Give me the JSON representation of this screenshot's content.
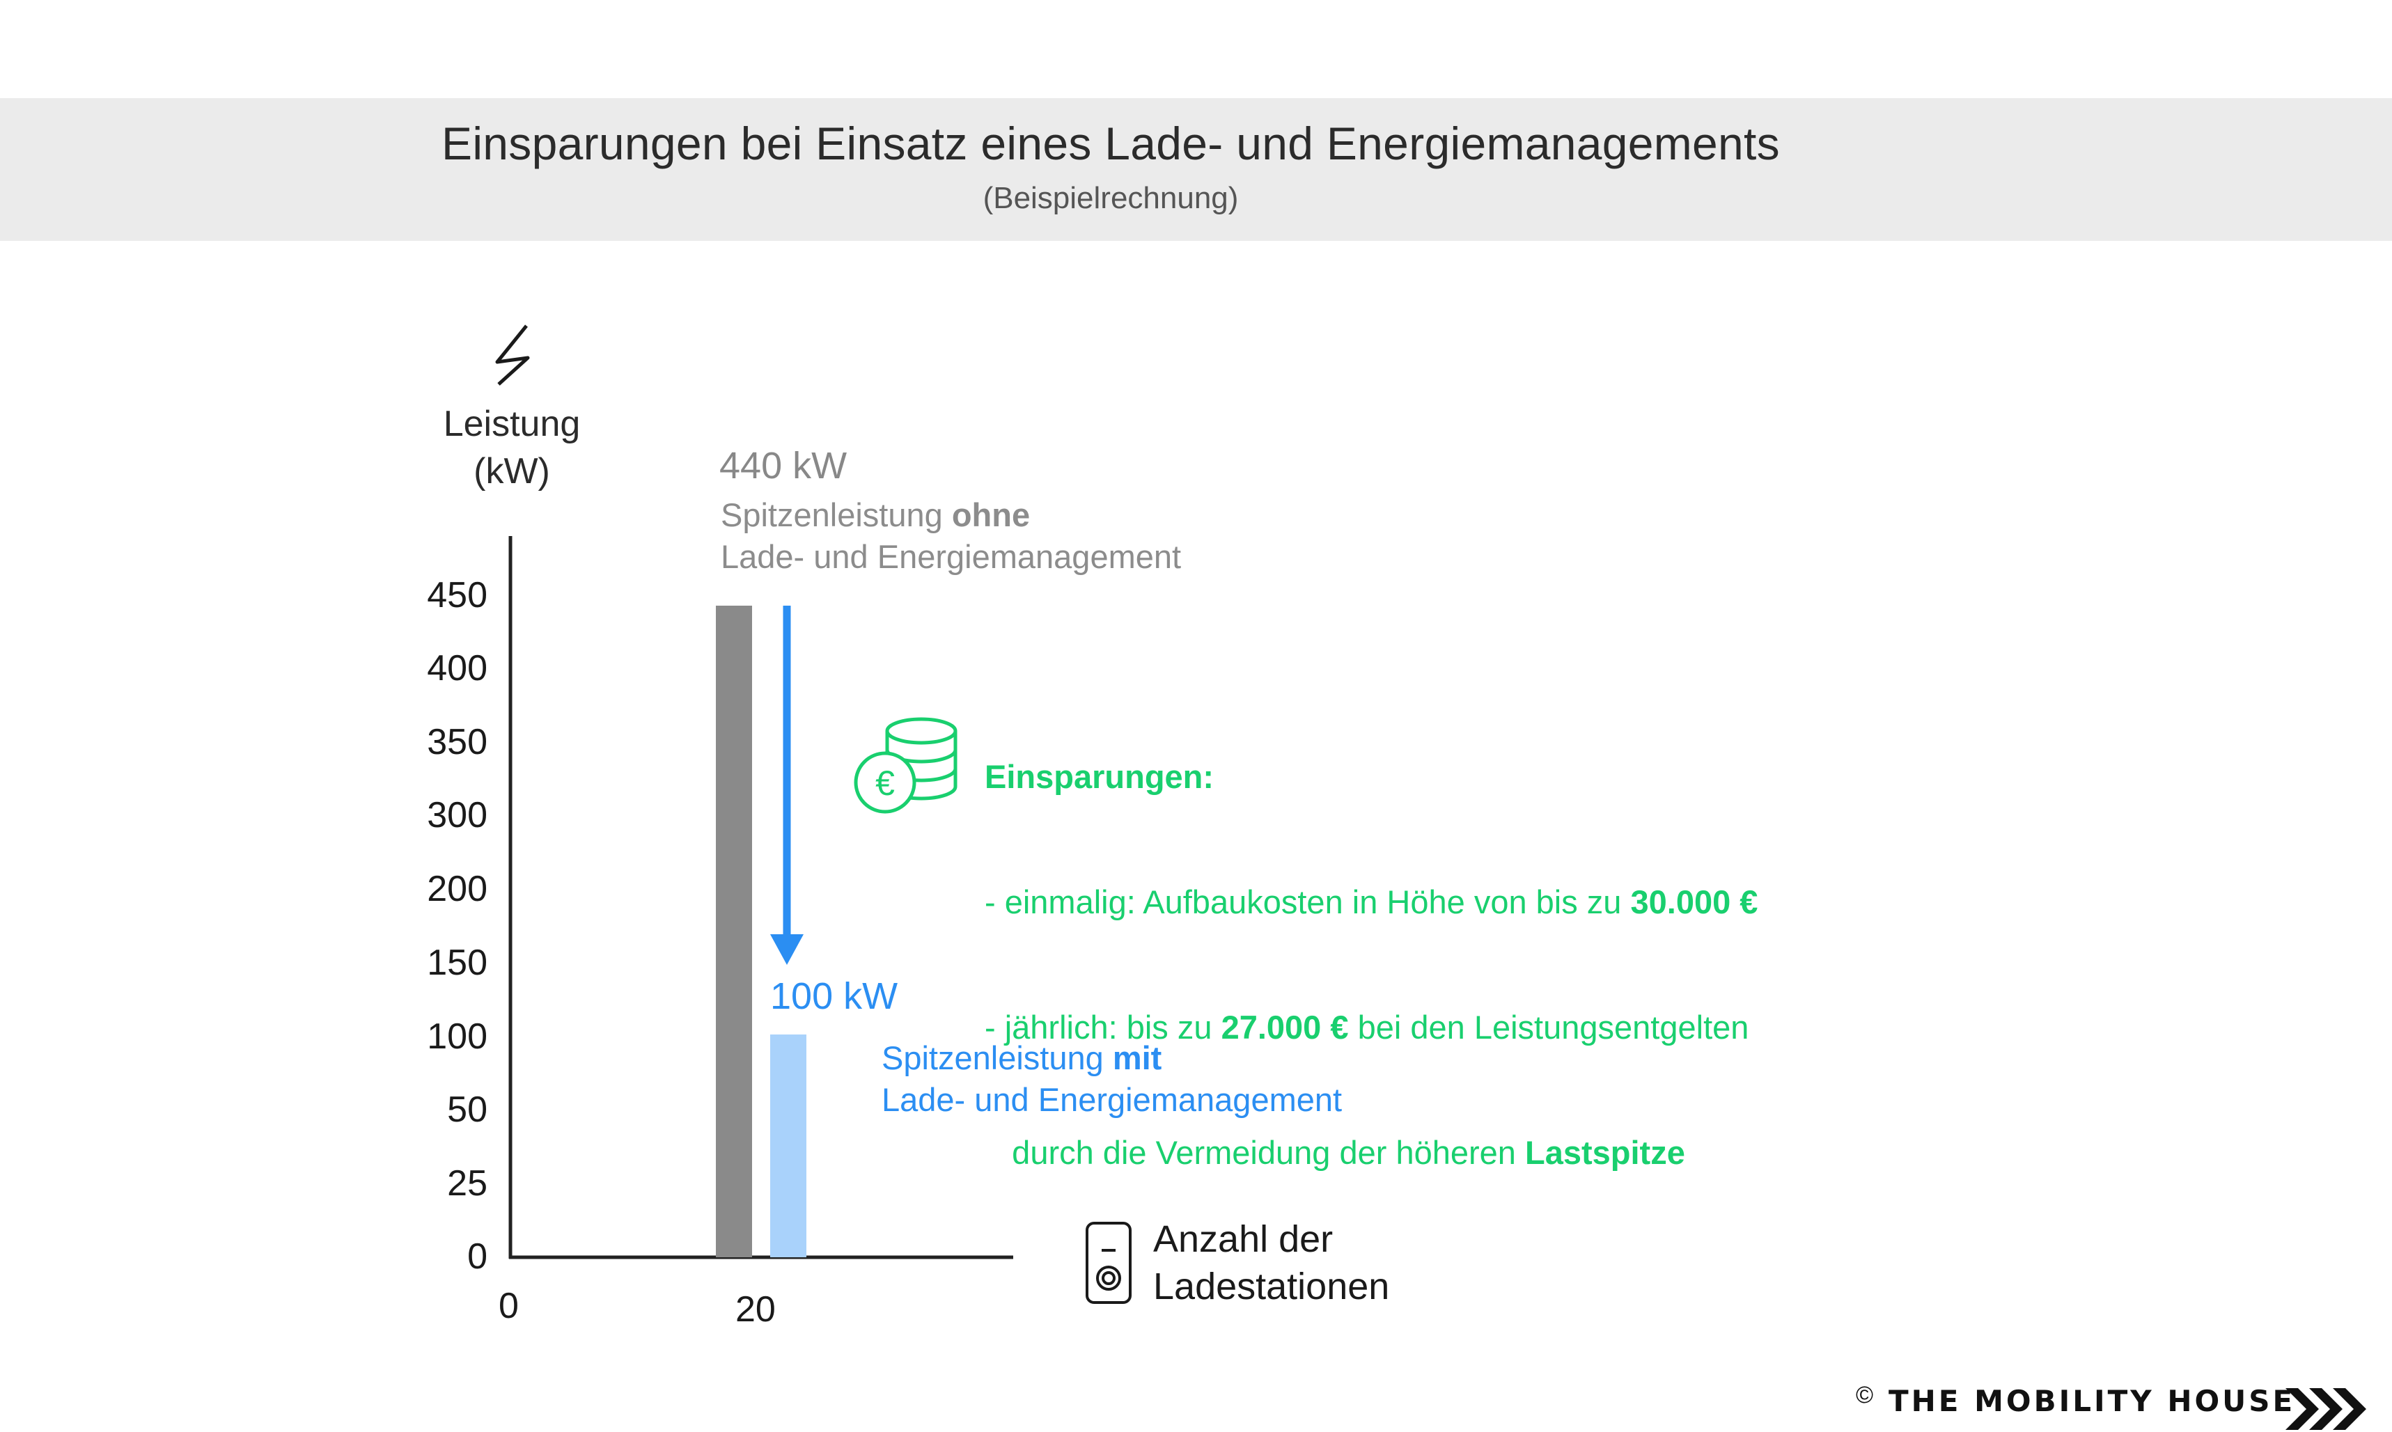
{
  "header": {
    "title": "Einsparungen bei Einsatz eines Lade- und Energiemanagements",
    "subtitle": "(Beispielrechnung)"
  },
  "chart_data": {
    "type": "bar",
    "y_axis_label_line1": "Leistung",
    "y_axis_label_line2": "(kW)",
    "y_ticks": [
      "0",
      "25",
      "50",
      "100",
      "150",
      "200",
      "300",
      "350",
      "400",
      "450"
    ],
    "x_ticks": [
      "0",
      "20"
    ],
    "x_axis_label_line1": "Anzahl der",
    "x_axis_label_line2": "Ladestationen",
    "series": [
      {
        "value": 440,
        "color": "#8a8a8a"
      },
      {
        "value": 100,
        "color": "#a9d2fb"
      }
    ],
    "x": [
      20,
      20
    ]
  },
  "annotations": {
    "without_value": "440 kW",
    "without_line1": "Spitzenleistung ",
    "without_line1_bold": "ohne",
    "without_line2": "Lade- und Energiemanagement",
    "with_value": "100 kW",
    "with_line1": "Spitzenleistung ",
    "with_line1_bold": "mit",
    "with_line2": "Lade- und Energiemanagement"
  },
  "savings": {
    "heading": "Einsparungen:",
    "line1_pre": "- einmalig: Aufbaukosten in Höhe von bis zu ",
    "line1_bold": "30.000 €",
    "line2_pre": "- jährlich: bis zu ",
    "line2_bold": "27.000 €",
    "line2_post": " bei den Leistungsentgelten",
    "line3_pre": "   durch die Vermeidung der höheren ",
    "line3_bold": "Lastspitze",
    "icon_symbol": "€"
  },
  "colors": {
    "gray_bar": "#8a8a8a",
    "blue_bar": "#a9d2fb",
    "blue_accent": "#2b8ef2",
    "green_accent": "#19cf6e"
  },
  "icons": {
    "power": "lightning-icon",
    "savings": "coins-euro-icon",
    "station": "charging-station-icon",
    "brand": "chevrons-right-icon"
  },
  "footer": {
    "copyright": "©",
    "brand": "THE MOBILITY HOUSE"
  }
}
